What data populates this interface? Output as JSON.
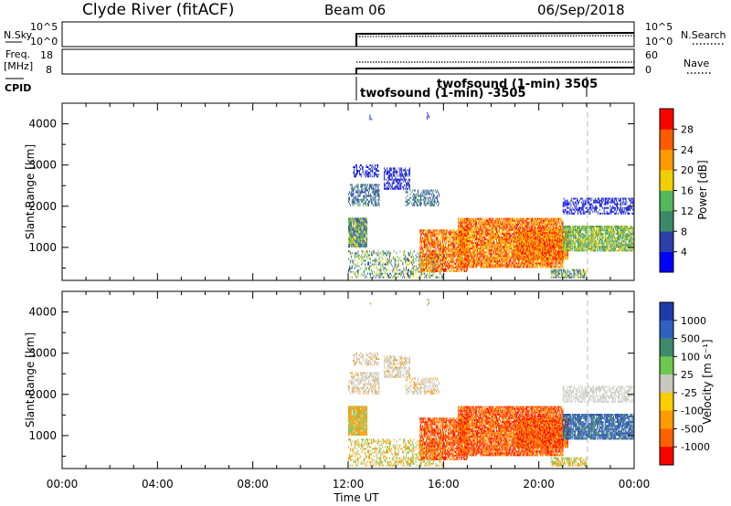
{
  "header": {
    "title": "Clyde River (fitACF)",
    "beam": "Beam 06",
    "date": "06/Sep/2018"
  },
  "nsky_panel": {
    "left_label": "N.Sky",
    "left_ticks": [
      "10^5",
      "10^0"
    ],
    "right_ticks": [
      "10^5",
      "10^0"
    ],
    "right_label": "N.Search"
  },
  "freq_panel": {
    "left_label_1": "Freq.",
    "left_label_2": "[MHz]",
    "left_ticks": [
      "18",
      "8"
    ],
    "right_ticks": [
      "60",
      "0"
    ],
    "right_label": "Nave"
  },
  "cpid_panel": {
    "label": "CPID",
    "mode_1": "twofsound (1-min) 3505",
    "mode_2": "twofsound (1-min) -3505"
  },
  "colors": {
    "power_scale": [
      "#0000ff",
      "#2b3fa6",
      "#3a8a6a",
      "#55b85a",
      "#f0d000",
      "#ff9a00",
      "#ff5a00",
      "#ff0000"
    ],
    "velocity_scale": [
      "#1d3ca8",
      "#3060c0",
      "#3c8a6a",
      "#6cc84e",
      "#c8c8c0",
      "#ffcc00",
      "#ff9a00",
      "#ff6000",
      "#ff0000"
    ]
  },
  "chart_data": [
    {
      "type": "heatmap",
      "panel": "power",
      "ylabel": "Slant Range [km]",
      "yticks": [
        "1000",
        "2000",
        "3000",
        "4000"
      ],
      "ylim": [
        200,
        4500
      ],
      "xlim_hours": [
        0,
        24
      ],
      "colorbar_label": "Power [dB]",
      "colorbar_ticks": [
        "4",
        "8",
        "12",
        "16",
        "20",
        "24",
        "28"
      ],
      "colorbar_range": [
        0,
        32
      ]
    },
    {
      "type": "heatmap",
      "panel": "velocity",
      "ylabel": "Slant Range [km]",
      "yticks": [
        "1000",
        "2000",
        "3000",
        "4000"
      ],
      "ylim": [
        200,
        4500
      ],
      "xlim_hours": [
        0,
        24
      ],
      "colorbar_label": "Velocity [m s⁻¹]",
      "colorbar_ticks": [
        "1000",
        "500",
        "100",
        "25",
        "-25",
        "-100",
        "-500",
        "-1000"
      ]
    }
  ],
  "xaxis": {
    "ticks": [
      "00:00",
      "04:00",
      "08:00",
      "12:00",
      "16:00",
      "20:00",
      "00:00"
    ],
    "label": "Time UT"
  }
}
